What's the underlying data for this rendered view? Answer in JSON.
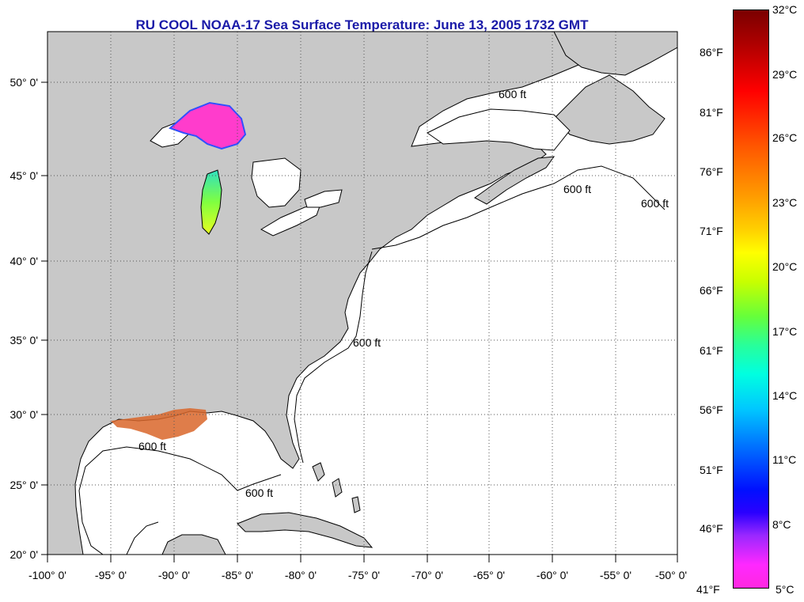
{
  "title": "RU COOL  NOAA-17  Sea Surface Temperature:  June 13, 2005 1732 GMT",
  "map": {
    "lon_range": [
      -100,
      -50
    ],
    "lat_range": [
      20,
      52
    ],
    "x_ticks": [
      "-100° 0'",
      "-95° 0'",
      "-90° 0'",
      "-85° 0'",
      "-80° 0'",
      "-75° 0'",
      "-70° 0'",
      "-65° 0'",
      "-60° 0'",
      "-55° 0'",
      "-50° 0'"
    ],
    "y_ticks": [
      "50° 0'",
      "45° 0'",
      "40° 0'",
      "35° 0'",
      "30° 0'",
      "25° 0'",
      "20° 0'"
    ],
    "contour_label": "600 ft",
    "colors": {
      "land": "#c8c8c8",
      "ocean": "#ffffff",
      "grid": "#555555"
    }
  },
  "colorbar": {
    "celsius": [
      "32°C",
      "29°C",
      "26°C",
      "23°C",
      "20°C",
      "17°C",
      "14°C",
      "11°C",
      "8°C",
      "5°C"
    ],
    "fahrenheit": [
      "86°F",
      "81°F",
      "76°F",
      "71°F",
      "66°F",
      "61°F",
      "56°F",
      "51°F",
      "46°F",
      "41°F"
    ],
    "range_c": [
      5,
      32
    ]
  }
}
